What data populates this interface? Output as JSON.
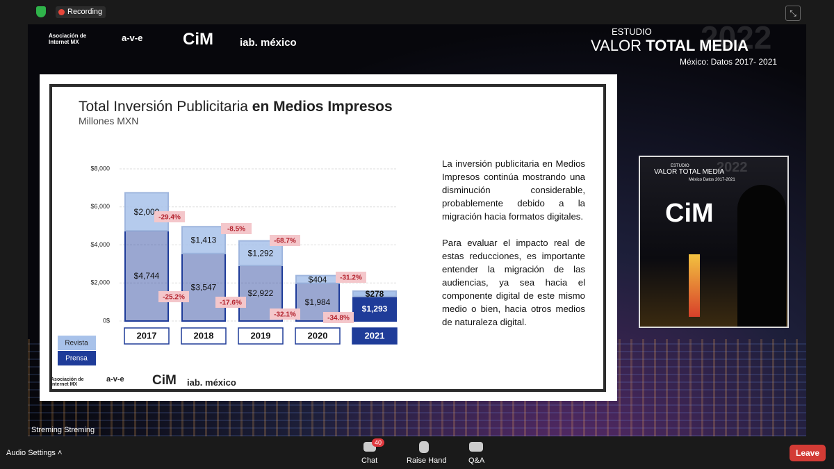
{
  "top_bar": {
    "recording": "Recording"
  },
  "header": {
    "logos": [
      "Asociación de Internet MX",
      "a-v-e",
      "CiM",
      "iab. méxico"
    ],
    "study": "ESTUDIO",
    "title_regular": "VALOR",
    "title_bold": "TOTAL MEDIA",
    "year": "2022",
    "subtitle": "México: Datos 2017- 2021"
  },
  "slide": {
    "title_regular": "Total Inversión Publicitaria",
    "title_bold": "en Medios Impresos",
    "subtitle": "Millones MXN",
    "paragraphs": [
      "La inversión publicitaria en Medios Impresos continúa mostrando una disminución considerable, probablemente debido a la migración hacia formatos digitales.",
      "Para evaluar el impacto real de estas reducciones, es importante entender la migración de las audiencias, ya sea hacia el componente digital de este mismo medio o bien, hacia otros medios de naturaleza digital."
    ],
    "footer_logos": [
      "Asociación de Internet MX",
      "a-v-e",
      "CiM",
      "iab. méxico"
    ]
  },
  "chart_data": {
    "type": "bar",
    "stacked": true,
    "categories": [
      "2017",
      "2018",
      "2019",
      "2020",
      "2021"
    ],
    "series": [
      {
        "name": "Prensa",
        "color": "#1f3c99",
        "values": [
          4744,
          3547,
          2922,
          1984,
          1293
        ],
        "value_labels": [
          "$4,744",
          "$3,547",
          "$2,922",
          "$1,984",
          "$1,293"
        ],
        "change_labels": [
          "-25.2%",
          "-17.6%",
          "-32.1%",
          "-34.8%"
        ]
      },
      {
        "name": "Revista",
        "color": "#a8c2ea",
        "values": [
          2000,
          1413,
          1292,
          404,
          278
        ],
        "value_labels": [
          "$2,000",
          "$1,413",
          "$1,292",
          "$404",
          "$278"
        ],
        "change_labels": [
          "-29.4%",
          "-8.5%",
          "-68.7%",
          "-31.2%"
        ]
      }
    ],
    "ylim": [
      0,
      8000
    ],
    "yticks": [
      {
        "value": 0,
        "label": "0$"
      },
      {
        "value": 2000,
        "label": "$2,000"
      },
      {
        "value": 4000,
        "label": "$4,000"
      },
      {
        "value": 6000,
        "label": "$6,000"
      },
      {
        "value": 8000,
        "label": "$8,000"
      }
    ],
    "grid": true
  },
  "presenter": {
    "study": "ESTUDIO",
    "title": "VALOR TOTAL MEDIA",
    "year": "2022",
    "subtitle": "México Datos 2017-2021",
    "logo": "CiM"
  },
  "participant_name": "Streming Streming",
  "toolbar": {
    "audio": "Audio Settings",
    "chat": "Chat",
    "chat_badge": "40",
    "raise_hand": "Raise Hand",
    "qa": "Q&A",
    "leave": "Leave"
  }
}
